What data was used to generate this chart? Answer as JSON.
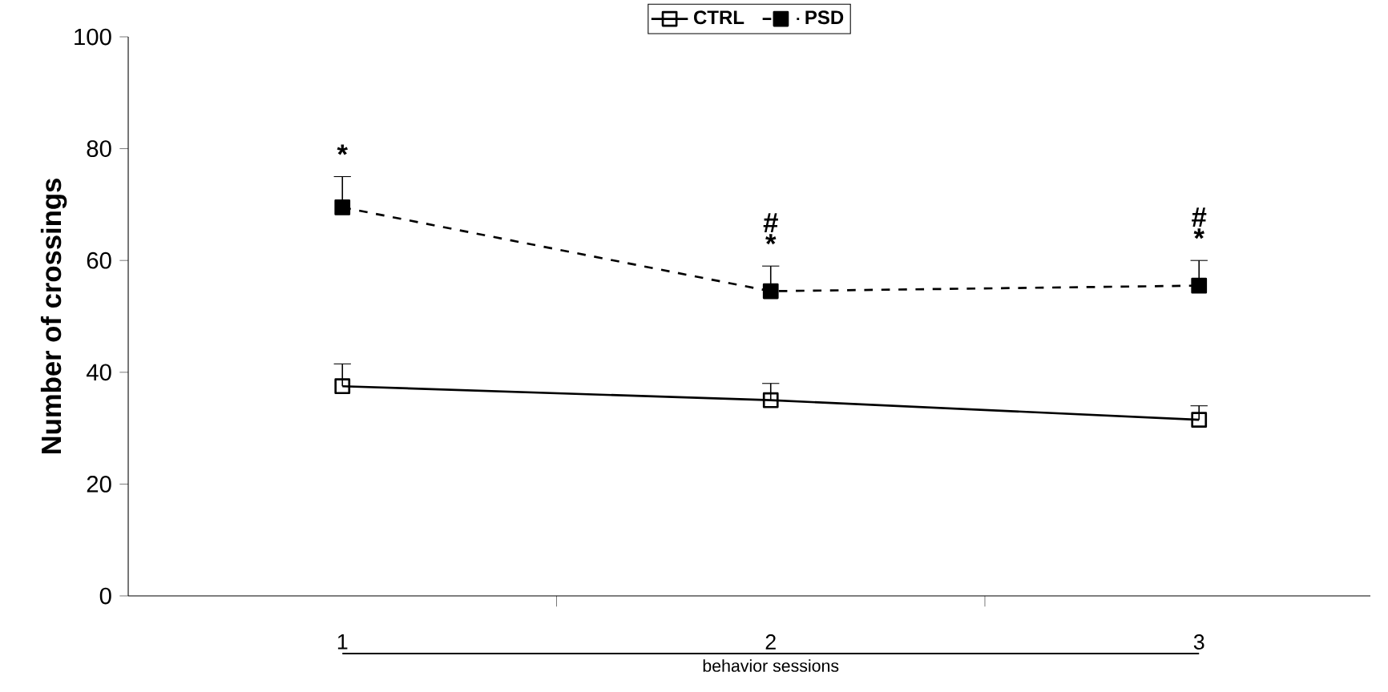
{
  "chart_data": {
    "type": "line",
    "xlabel": "behavior sessions",
    "ylabel": "Number of crossings",
    "categories": [
      "1",
      "2",
      "3"
    ],
    "series": [
      {
        "name": "CTRL",
        "color": "#000000",
        "values": [
          37.5,
          35,
          31.5
        ],
        "errors": [
          4,
          3,
          2.5
        ],
        "line_style": "solid",
        "marker": "square"
      },
      {
        "name": "PSD",
        "color": "#000000",
        "values": [
          69.5,
          54.5,
          55.5
        ],
        "errors": [
          5.5,
          4.5,
          4.5
        ],
        "line_style": "dashed",
        "marker": "square"
      }
    ],
    "ylim": [
      0,
      100
    ],
    "yticks": [
      0,
      20,
      40,
      60,
      80,
      100
    ],
    "legend": "top",
    "grid": false,
    "annotations": [
      "*",
      "*",
      "#",
      "*",
      "#"
    ]
  }
}
